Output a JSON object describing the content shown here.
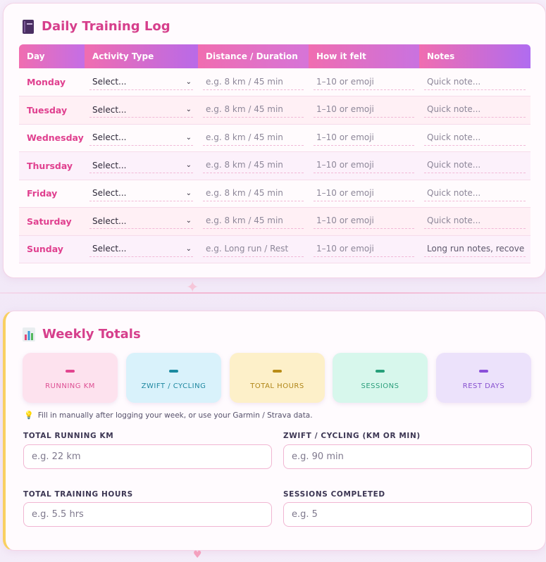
{
  "log": {
    "title": "Daily Training Log",
    "columns": [
      "Day",
      "Activity Type",
      "Distance / Duration",
      "How it felt",
      "Notes"
    ],
    "rows": [
      {
        "day": "Monday",
        "activity": "Select...",
        "distance": "e.g. 8 km / 45 min",
        "felt": "1–10 or emoji",
        "notes": "Quick note..."
      },
      {
        "day": "Tuesday",
        "activity": "Select...",
        "distance": "e.g. 8 km / 45 min",
        "felt": "1–10 or emoji",
        "notes": "Quick note..."
      },
      {
        "day": "Wednesday",
        "activity": "Select...",
        "distance": "e.g. 8 km / 45 min",
        "felt": "1–10 or emoji",
        "notes": "Quick note..."
      },
      {
        "day": "Thursday",
        "activity": "Select...",
        "distance": "e.g. 8 km / 45 min",
        "felt": "1–10 or emoji",
        "notes": "Quick note..."
      },
      {
        "day": "Friday",
        "activity": "Select...",
        "distance": "e.g. 8 km / 45 min",
        "felt": "1–10 or emoji",
        "notes": "Quick note..."
      },
      {
        "day": "Saturday",
        "activity": "Select...",
        "distance": "e.g. 8 km / 45 min",
        "felt": "1–10 or emoji",
        "notes": "Quick note..."
      },
      {
        "day": "Sunday",
        "activity": "Select...",
        "distance": "e.g. Long run / Rest",
        "felt": "1–10 or emoji",
        "notes": "Long run notes, recove"
      }
    ]
  },
  "totals": {
    "title": "Weekly Totals",
    "stats": [
      {
        "label": "RUNNING KM",
        "value": "–"
      },
      {
        "label": "ZWIFT / CYCLING",
        "value": "–"
      },
      {
        "label": "TOTAL HOURS",
        "value": "–"
      },
      {
        "label": "SESSIONS",
        "value": "–"
      },
      {
        "label": "REST DAYS",
        "value": "–"
      }
    ],
    "tip": "Fill in manually after logging your week, or use your Garmin / Strava data.",
    "fields": [
      {
        "label": "TOTAL RUNNING KM",
        "placeholder": "e.g. 22 km"
      },
      {
        "label": "ZWIFT / CYCLING (KM OR MIN)",
        "placeholder": "e.g. 90 min"
      },
      {
        "label": "TOTAL TRAINING HOURS",
        "placeholder": "e.g. 5.5 hrs"
      },
      {
        "label": "SESSIONS COMPLETED",
        "placeholder": "e.g. 5"
      }
    ]
  },
  "icons": {
    "log_icon": "notebook-icon",
    "totals_icon": "bar-chart-icon",
    "tip_icon": "lightbulb-icon",
    "select_chevron": "chevron-down-icon"
  },
  "colors": {
    "accent_pink": "#d63f8c",
    "header_gradient_start": "#f06db0",
    "header_gradient_end": "#b06cf0"
  }
}
